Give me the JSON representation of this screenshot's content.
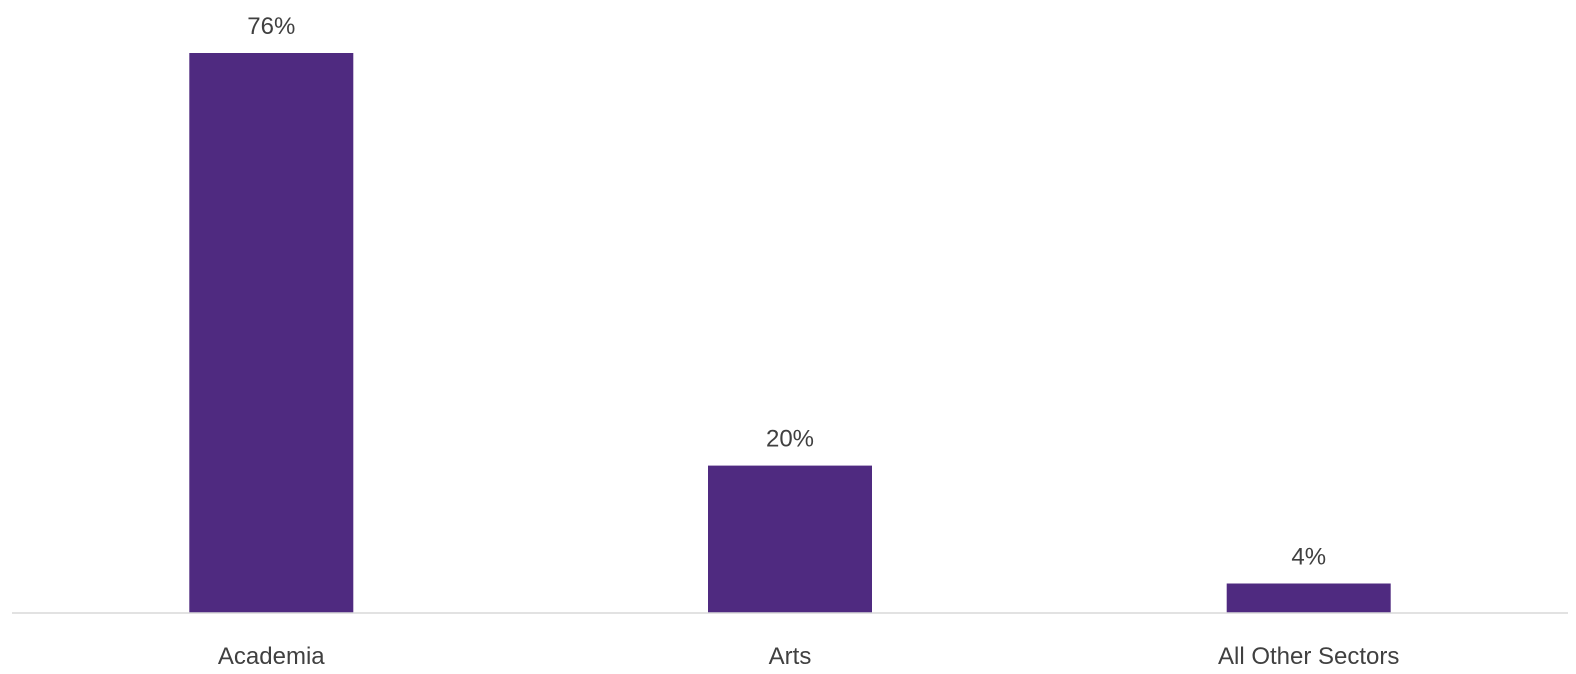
{
  "chart_data": {
    "type": "bar",
    "categories": [
      "Academia",
      "Arts",
      "All Other Sectors"
    ],
    "values": [
      76,
      20,
      4
    ],
    "data_labels": [
      "76%",
      "20%",
      "4%"
    ],
    "title": "",
    "xlabel": "",
    "ylabel": "",
    "ylim": [
      0,
      76
    ],
    "grid": false,
    "legend": "none",
    "colors": {
      "bar": "#4f2a80",
      "axis": "#d9d9d9",
      "text": "#404040"
    }
  }
}
